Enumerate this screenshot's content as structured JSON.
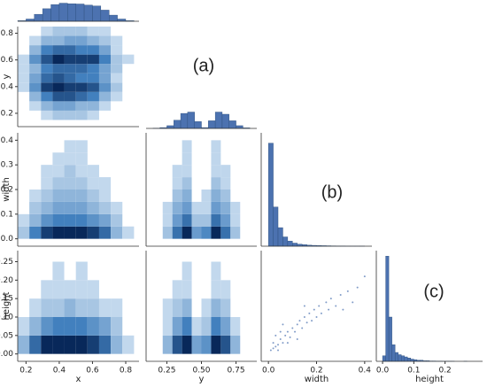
{
  "annotations": [
    "(a)",
    "(b)",
    "(c)"
  ],
  "chart_data": [
    {
      "type": "histogram",
      "bins": [
        0.15,
        0.2,
        0.25,
        0.3,
        0.35,
        0.4,
        0.45,
        0.5,
        0.55,
        0.6,
        0.65,
        0.7,
        0.75,
        0.8,
        0.85
      ],
      "values": [
        2,
        8,
        25,
        45,
        60,
        65,
        63,
        62,
        58,
        55,
        40,
        22,
        8,
        2
      ],
      "xlim": [
        0.15,
        0.88
      ],
      "ylim": [
        0,
        70
      ],
      "color": "#4c72b0"
    },
    {
      "type": "heatmap",
      "ylabel": "y",
      "xbins": [
        0.15,
        0.22,
        0.29,
        0.36,
        0.43,
        0.5,
        0.57,
        0.64,
        0.71,
        0.78,
        0.85
      ],
      "ybins": [
        0.15,
        0.22,
        0.29,
        0.36,
        0.43,
        0.5,
        0.57,
        0.64,
        0.71,
        0.78,
        0.85
      ],
      "values": [
        [
          0,
          0,
          1,
          2,
          2,
          2,
          1,
          0,
          0,
          0
        ],
        [
          0,
          1,
          3,
          4,
          4,
          3,
          3,
          1,
          0,
          0
        ],
        [
          0,
          3,
          6,
          8,
          8,
          7,
          6,
          3,
          1,
          0
        ],
        [
          1,
          5,
          9,
          10,
          9,
          9,
          8,
          5,
          2,
          0
        ],
        [
          1,
          4,
          7,
          8,
          7,
          6,
          6,
          4,
          1,
          0
        ],
        [
          1,
          3,
          6,
          7,
          7,
          7,
          6,
          4,
          2,
          0
        ],
        [
          1,
          5,
          8,
          10,
          9,
          9,
          9,
          6,
          2,
          1
        ],
        [
          0,
          3,
          6,
          7,
          7,
          6,
          6,
          4,
          1,
          0
        ],
        [
          0,
          1,
          3,
          3,
          4,
          4,
          3,
          2,
          1,
          0
        ],
        [
          0,
          0,
          1,
          2,
          2,
          2,
          1,
          1,
          0,
          0
        ]
      ],
      "xlim": [
        0.15,
        0.88
      ],
      "ylim": [
        0.1,
        0.85
      ],
      "yticks": [
        0.2,
        0.4,
        0.6,
        0.8
      ]
    },
    {
      "type": "histogram",
      "bins": [
        0.15,
        0.2,
        0.25,
        0.3,
        0.35,
        0.4,
        0.45,
        0.5,
        0.55,
        0.6,
        0.65,
        0.7,
        0.75,
        0.8,
        0.85
      ],
      "values": [
        1,
        3,
        10,
        30,
        55,
        60,
        25,
        3,
        28,
        60,
        52,
        28,
        10,
        2
      ],
      "xlim": [
        0.1,
        0.9
      ],
      "ylim": [
        0,
        65
      ],
      "color": "#4c72b0"
    },
    {
      "type": "heatmap",
      "ylabel": "width",
      "xbins": [
        0.15,
        0.22,
        0.29,
        0.36,
        0.43,
        0.5,
        0.57,
        0.64,
        0.71,
        0.78,
        0.85
      ],
      "ybins": [
        0,
        0.05,
        0.1,
        0.15,
        0.2,
        0.25,
        0.3,
        0.35,
        0.4
      ],
      "values": [
        [
          2,
          6,
          9,
          10,
          10,
          10,
          9,
          7,
          3,
          1
        ],
        [
          1,
          3,
          5,
          6,
          6,
          6,
          5,
          4,
          2,
          0
        ],
        [
          0,
          2,
          3,
          4,
          4,
          4,
          3,
          2,
          1,
          0
        ],
        [
          0,
          1,
          2,
          3,
          3,
          3,
          2,
          1,
          0,
          0
        ],
        [
          0,
          0,
          1,
          2,
          2,
          2,
          1,
          1,
          0,
          0
        ],
        [
          0,
          0,
          1,
          1,
          2,
          1,
          1,
          0,
          0,
          0
        ],
        [
          0,
          0,
          0,
          1,
          1,
          1,
          0,
          0,
          0,
          0
        ],
        [
          0,
          0,
          0,
          0,
          1,
          1,
          0,
          0,
          0,
          0
        ]
      ],
      "xlim": [
        0.15,
        0.88
      ],
      "ylim": [
        -0.03,
        0.43
      ],
      "yticks": [
        {
          "value": 0,
          "label": "0.0"
        },
        0.1,
        0.2,
        0.3,
        0.4
      ]
    },
    {
      "type": "heatmap",
      "xbins": [
        0.15,
        0.22,
        0.29,
        0.36,
        0.43,
        0.5,
        0.57,
        0.64,
        0.71,
        0.78,
        0.85
      ],
      "ybins": [
        0,
        0.05,
        0.1,
        0.15,
        0.2,
        0.25,
        0.3,
        0.35,
        0.4
      ],
      "values": [
        [
          0,
          2,
          6,
          9,
          4,
          5,
          9,
          6,
          2,
          0
        ],
        [
          0,
          1,
          4,
          6,
          2,
          2,
          6,
          4,
          1,
          0
        ],
        [
          0,
          1,
          3,
          4,
          1,
          1,
          4,
          3,
          1,
          0
        ],
        [
          0,
          0,
          2,
          3,
          0,
          1,
          3,
          2,
          0,
          0
        ],
        [
          0,
          0,
          1,
          2,
          0,
          0,
          2,
          1,
          0,
          0
        ],
        [
          0,
          0,
          1,
          1,
          0,
          0,
          1,
          1,
          0,
          0
        ],
        [
          0,
          0,
          0,
          1,
          0,
          0,
          1,
          0,
          0,
          0
        ],
        [
          0,
          0,
          0,
          1,
          0,
          0,
          1,
          0,
          0,
          0
        ]
      ],
      "xlim": [
        0.1,
        0.9
      ],
      "ylim": [
        -0.03,
        0.43
      ]
    },
    {
      "type": "histogram",
      "bins": [
        0,
        0.02,
        0.04,
        0.06,
        0.08,
        0.1,
        0.12,
        0.14,
        0.16,
        0.18,
        0.2,
        0.22,
        0.24,
        0.26,
        0.28,
        0.3,
        0.32,
        0.34,
        0.36,
        0.38,
        0.4
      ],
      "values": [
        100,
        38,
        18,
        9,
        5,
        3,
        2,
        1.5,
        1,
        0.8,
        0.6,
        0.5,
        0.4,
        0.3,
        0.2,
        0.2,
        0.1,
        0.1,
        0.1,
        0.1
      ],
      "xlim": [
        -0.03,
        0.43
      ],
      "ylim": [
        0,
        110
      ],
      "color": "#4c72b0"
    },
    {
      "type": "heatmap",
      "ylabel": "height",
      "xlabel": "x",
      "xbins": [
        0.15,
        0.22,
        0.29,
        0.36,
        0.43,
        0.5,
        0.57,
        0.64,
        0.71,
        0.78,
        0.85
      ],
      "ybins": [
        0,
        0.05,
        0.1,
        0.15,
        0.2,
        0.25
      ],
      "values": [
        [
          3,
          7,
          10,
          10,
          10,
          10,
          9,
          7,
          3,
          1
        ],
        [
          1,
          3,
          5,
          6,
          6,
          6,
          5,
          4,
          2,
          0
        ],
        [
          0,
          1,
          2,
          2,
          3,
          2,
          2,
          1,
          1,
          0
        ],
        [
          0,
          0,
          1,
          1,
          1,
          1,
          1,
          0,
          0,
          0
        ],
        [
          0,
          0,
          0,
          1,
          0,
          1,
          0,
          0,
          0,
          0
        ]
      ],
      "xlim": [
        0.15,
        0.88
      ],
      "ylim": [
        -0.02,
        0.28
      ],
      "xticks": [
        0.2,
        0.4,
        0.6,
        0.8
      ],
      "yticks": [
        {
          "value": 0,
          "label": "0.00"
        },
        0.05,
        {
          "value": 0.1,
          "label": "0.10"
        },
        0.15,
        {
          "value": 0.2,
          "label": "0.20"
        },
        0.25
      ]
    },
    {
      "type": "heatmap",
      "xlabel": "y",
      "xbins": [
        0.15,
        0.22,
        0.29,
        0.36,
        0.43,
        0.5,
        0.57,
        0.64,
        0.71,
        0.78,
        0.85
      ],
      "ybins": [
        0,
        0.05,
        0.1,
        0.15,
        0.2,
        0.25
      ],
      "values": [
        [
          0,
          3,
          8,
          10,
          4,
          5,
          10,
          8,
          3,
          0
        ],
        [
          0,
          1,
          4,
          6,
          1,
          2,
          6,
          4,
          1,
          0
        ],
        [
          0,
          1,
          2,
          3,
          0,
          1,
          3,
          2,
          0,
          0
        ],
        [
          0,
          0,
          1,
          1,
          0,
          0,
          1,
          1,
          0,
          0
        ],
        [
          0,
          0,
          0,
          1,
          0,
          0,
          1,
          0,
          0,
          0
        ]
      ],
      "xlim": [
        0.1,
        0.9
      ],
      "ylim": [
        -0.02,
        0.28
      ],
      "xticks": [
        0.25,
        {
          "value": 0.5,
          "label": "0.50"
        },
        0.75
      ]
    },
    {
      "type": "scatter",
      "xlabel": "width",
      "color": "#4c72b0",
      "x": [
        0.01,
        0.02,
        0.03,
        0.02,
        0.04,
        0.05,
        0.06,
        0.07,
        0.08,
        0.09,
        0.1,
        0.11,
        0.12,
        0.13,
        0.14,
        0.15,
        0.16,
        0.17,
        0.18,
        0.19,
        0.2,
        0.21,
        0.22,
        0.24,
        0.25,
        0.26,
        0.28,
        0.3,
        0.31,
        0.33,
        0.35,
        0.37,
        0.4,
        0.03,
        0.05,
        0.04,
        0.06,
        0.08,
        0.12,
        0.15
      ],
      "y": [
        0.01,
        0.015,
        0.02,
        0.03,
        0.025,
        0.04,
        0.03,
        0.05,
        0.06,
        0.045,
        0.07,
        0.06,
        0.08,
        0.09,
        0.07,
        0.1,
        0.085,
        0.11,
        0.09,
        0.12,
        0.1,
        0.13,
        0.11,
        0.14,
        0.12,
        0.15,
        0.13,
        0.16,
        0.12,
        0.17,
        0.14,
        0.18,
        0.21,
        0.05,
        0.06,
        0.01,
        0.08,
        0.03,
        0.04,
        0.13
      ],
      "xlim": [
        -0.03,
        0.43
      ],
      "ylim": [
        -0.02,
        0.28
      ],
      "xticks": [
        {
          "value": 0,
          "label": "0.0"
        },
        0.2,
        0.4
      ]
    },
    {
      "type": "histogram",
      "xlabel": "height",
      "bins": [
        0,
        0.01,
        0.02,
        0.03,
        0.04,
        0.05,
        0.06,
        0.07,
        0.08,
        0.09,
        0.1,
        0.11,
        0.12,
        0.13,
        0.14,
        0.15,
        0.16,
        0.17,
        0.18,
        0.19,
        0.2,
        0.21,
        0.22,
        0.23,
        0.24,
        0.25,
        0.26,
        0.27,
        0.28,
        0.29,
        0.3
      ],
      "values": [
        5,
        95,
        40,
        15,
        8,
        6,
        5,
        4,
        3,
        2,
        1.5,
        1,
        1,
        0.5,
        0.5,
        0.3,
        0.3,
        0.2,
        0.2,
        0.1,
        0.1,
        0.1,
        0.1,
        0,
        0,
        0,
        0.1,
        0,
        0,
        0
      ],
      "xlim": [
        -0.02,
        0.32
      ],
      "ylim": [
        0,
        100
      ],
      "xticks": [
        {
          "value": 0,
          "label": "0.0"
        },
        0.1,
        0.2
      ],
      "color": "#4c72b0"
    }
  ]
}
